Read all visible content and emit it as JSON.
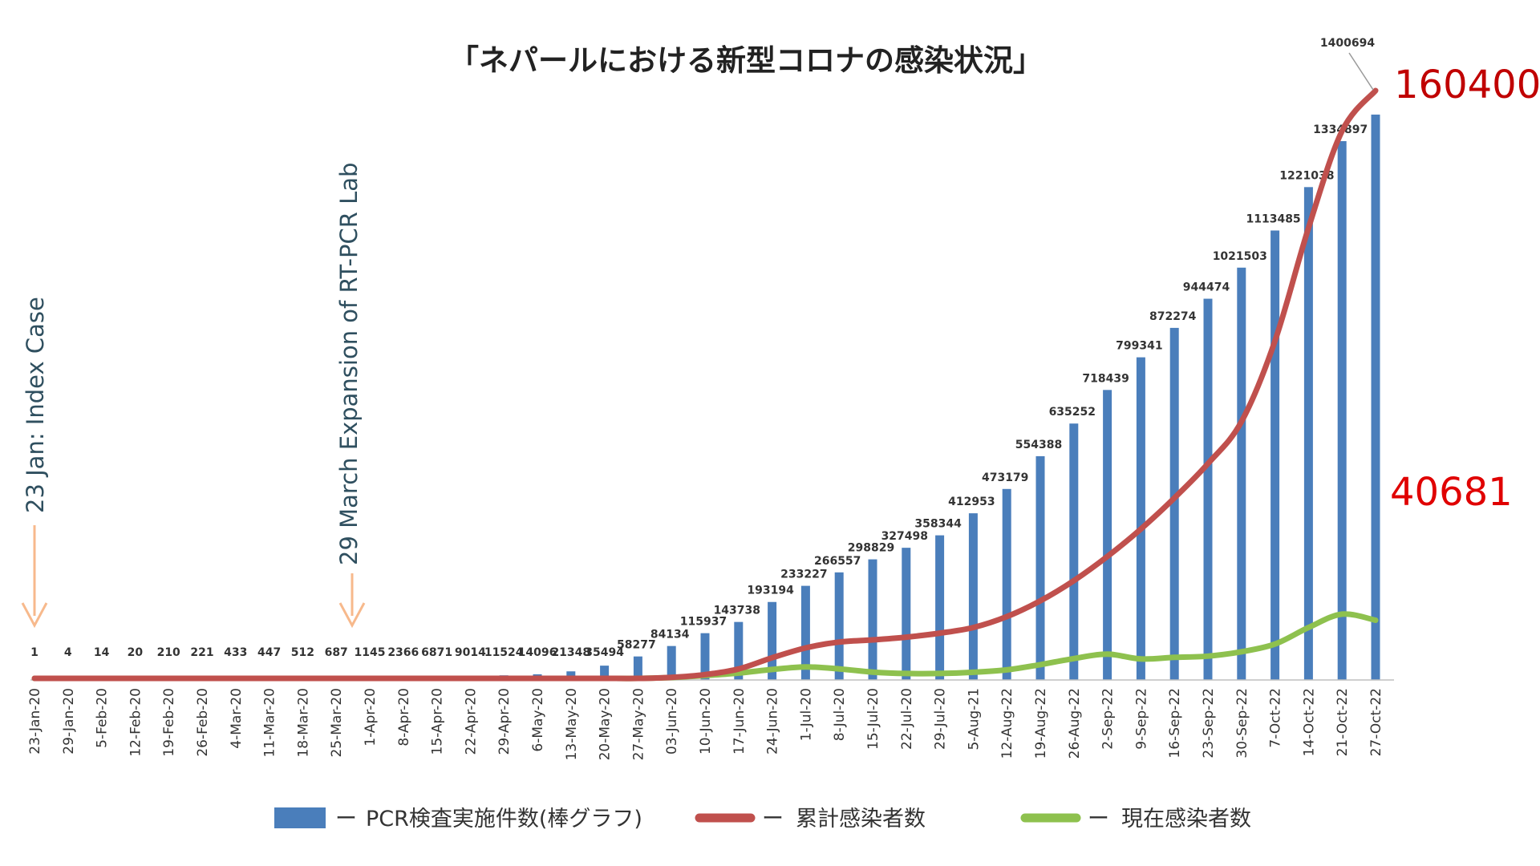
{
  "chart_data": {
    "type": "bar",
    "title": "「ネパールにおける新型コロナの感染状況」",
    "categories": [
      "23-Jan-20",
      "29-Jan-20",
      "5-Feb-20",
      "12-Feb-20",
      "19-Feb-20",
      "26-Feb-20",
      "4-Mar-20",
      "11-Mar-20",
      "18-Mar-20",
      "25-Mar-20",
      "1-Apr-20",
      "8-Apr-20",
      "15-Apr-20",
      "22-Apr-20",
      "29-Apr-20",
      "6-May-20",
      "13-May-20",
      "20-May-20",
      "27-May-20",
      "03-Jun-20",
      "10-Jun-20",
      "17-Jun-20",
      "24-Jun-20",
      "1-Jul-20",
      "8-Jul-20",
      "15-Jul-20",
      "22-Jul-20",
      "29-Jul-20",
      "5-Aug-21",
      "12-Aug-22",
      "19-Aug-22",
      "26-Aug-22",
      "2-Sep-22",
      "9-Sep-22",
      "16-Sep-22",
      "23-Sep-22",
      "30-Sep-22",
      "7-Oct-22",
      "14-Oct-22",
      "21-Oct-22",
      "27-Oct-22"
    ],
    "series": [
      {
        "name": "PCR検査実施件数(棒グラフ)",
        "kind": "bar",
        "color": "#4a7ebb",
        "values": [
          1,
          4,
          14,
          20,
          210,
          221,
          433,
          447,
          512,
          687,
          1145,
          2366,
          6871,
          9014,
          11524,
          14096,
          21348,
          35494,
          58277,
          84134,
          115937,
          143738,
          193194,
          233227,
          266557,
          298829,
          327498,
          358344,
          412953,
          473179,
          554388,
          635252,
          718439,
          799341,
          872274,
          944474,
          1021503,
          1113485,
          1221038,
          1334897,
          1400694
        ],
        "labels": [
          "1",
          "4",
          "14",
          "20",
          "210",
          "221",
          "433",
          "447",
          "512",
          "687",
          "1145",
          "2366",
          "6871",
          "9014",
          "11524",
          "14096",
          "21348",
          "35494",
          "58277",
          "84134",
          "115937",
          "143738",
          "193194",
          "233227",
          "266557",
          "298829",
          "327498",
          "358344",
          "412953",
          "473179",
          "554388",
          "635252",
          "718439",
          "799341",
          "872274",
          "944474",
          "1021503",
          "1113485",
          "1221038",
          "1334897",
          "1400694"
        ]
      },
      {
        "name": "累計感染者数",
        "kind": "line",
        "color": "#c0504d",
        "values": [
          0,
          0,
          0,
          0,
          0,
          0,
          0,
          0,
          0,
          0,
          0,
          0,
          0,
          0,
          0,
          100,
          300,
          800,
          2600,
          6600,
          13400,
          27200,
          55000,
          79500,
          94000,
          99400,
          106000,
          116000,
          130000,
          157000,
          196000,
          246000,
          306000,
          374000,
          451000,
          536000,
          640000,
          840000,
          1120000,
          1360000,
          1460000
        ]
      },
      {
        "name": "現在感染者数",
        "kind": "line",
        "color": "#8ec14e",
        "values": [
          0,
          0,
          0,
          0,
          0,
          0,
          0,
          0,
          0,
          0,
          0,
          0,
          0,
          0,
          0,
          100,
          300,
          800,
          2500,
          6000,
          11000,
          17000,
          26000,
          32400,
          27500,
          19500,
          16000,
          16000,
          19000,
          25000,
          38000,
          53000,
          64000,
          52000,
          56000,
          59000,
          70000,
          89000,
          130000,
          163000,
          148000
        ]
      }
    ],
    "ylim": [
      0,
      1470000
    ],
    "annotations": {
      "index_case": "23 Jan: Index Case",
      "rtpcr": "29 March Expansion of RT-PCR Lab",
      "cumulative_callout": "160400",
      "active_callout": "40681"
    },
    "legend": {
      "position": "bottom",
      "dash": "ー"
    },
    "colors": {
      "bar": "#4a7ebb",
      "cumulative": "#c0504d",
      "active": "#8ec14e",
      "arrow": "#f7b98c",
      "callout": "#e00000",
      "anno_text": "#2f4f5f"
    }
  }
}
